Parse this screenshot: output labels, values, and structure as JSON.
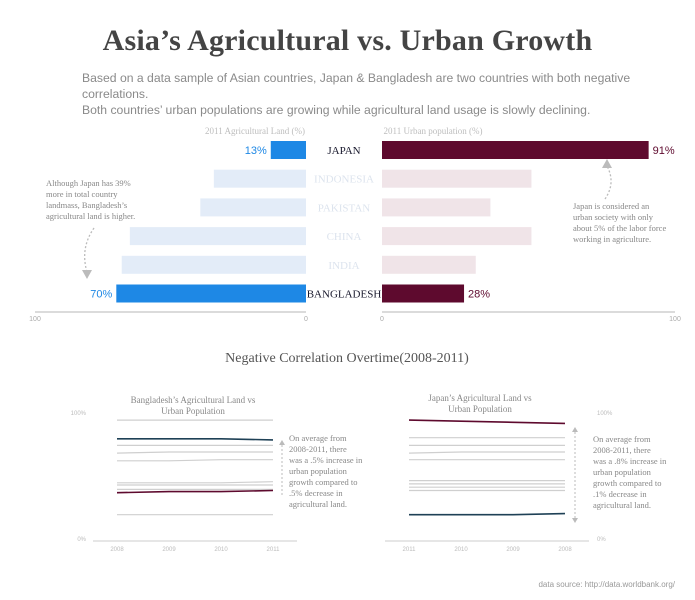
{
  "title": "Asia’s Agricultural vs. Urban Growth",
  "subtitle_line1": "Based on a data sample of Asian countries, Japan & Bangladesh are two countries with both negative correlations.",
  "subtitle_line2": "Both countries’ urban populations are growing while agricultural land usage is slowly declining.",
  "annotations": {
    "left_note": [
      "Although Japan has 39%",
      "more in total country",
      "landmass, Bangladesh’s",
      "agricultural land is higher."
    ],
    "right_note": [
      "Japan is considered an",
      "urban society with only",
      "about 5% of the labor force",
      "working in agriculture."
    ],
    "bangladesh_note": [
      "On average from",
      "2008-2011, there",
      "was a .5% increase in",
      "urban population",
      "growth compared to",
      ".5% decrease in",
      "agricultural land."
    ],
    "japan_note": [
      "On average from",
      "2008-2011, there",
      "was a .8% increase in",
      "urban population",
      "growth compared to",
      ".1% decrease in",
      "agricultural land."
    ]
  },
  "section2_title": "Negative Correlation Overtime(2008-2011)",
  "source": "data source: http://data.worldbank.org/",
  "colors": {
    "agri": "#1e88e5",
    "agri_faded": "#e3ecf8",
    "urban": "#5e0a2e",
    "urban_faded": "#f0e4e8",
    "highlight_line": "#1f4156",
    "line_gray": "#cfcfcf"
  },
  "chart_data": [
    {
      "type": "bar",
      "categories": [
        "JAPAN",
        "INDONESIA",
        "PAKISTAN",
        "CHINA",
        "INDIA",
        "BANGLADESH"
      ],
      "highlighted": [
        "JAPAN",
        "BANGLADESH"
      ],
      "series": [
        {
          "name": "2011 Agricultural Land (%)",
          "values": [
            13,
            34,
            39,
            65,
            68,
            70
          ],
          "labels": [
            "13%",
            "",
            "",
            "",
            "",
            "70%"
          ],
          "direction": "left"
        },
        {
          "name": "2011 Urban population (%)",
          "values": [
            91,
            51,
            37,
            51,
            32,
            28
          ],
          "labels": [
            "91%",
            "",
            "",
            "",
            "",
            "28%"
          ],
          "direction": "right"
        }
      ],
      "left_axis": {
        "min": 0,
        "max": 100,
        "tick_labels": [
          "100",
          "0"
        ]
      },
      "right_axis": {
        "min": 0,
        "max": 100,
        "tick_labels": [
          "0",
          "100"
        ]
      }
    },
    {
      "type": "line",
      "title_lines": [
        "Bangladesh’s Agricultural Land vs",
        "Urban Population"
      ],
      "x": [
        "2008",
        "2009",
        "2010",
        "2011"
      ],
      "ylim": [
        0,
        100
      ],
      "y_tick_labels": [
        "100%",
        "0%"
      ],
      "series": [
        {
          "values": [
            99,
            99,
            99,
            99
          ],
          "style": "gray"
        },
        {
          "values": [
            82,
            82,
            82,
            81
          ],
          "style": "highlight"
        },
        {
          "values": [
            76,
            76,
            76,
            76
          ],
          "style": "gray"
        },
        {
          "values": [
            69,
            70,
            70,
            70
          ],
          "style": "gray"
        },
        {
          "values": [
            62,
            62,
            63,
            63
          ],
          "style": "gray"
        },
        {
          "values": [
            42,
            42,
            42,
            43
          ],
          "style": "gray"
        },
        {
          "values": [
            40,
            40,
            40,
            40
          ],
          "style": "gray"
        },
        {
          "values": [
            36,
            36,
            36,
            36
          ],
          "style": "gray"
        },
        {
          "values": [
            33,
            34,
            34,
            35
          ],
          "style": "urban"
        },
        {
          "values": [
            13,
            13,
            13,
            13
          ],
          "style": "gray"
        }
      ]
    },
    {
      "type": "line",
      "title_lines": [
        "Japan’s Agricultural Land vs",
        "Urban Population"
      ],
      "x": [
        "2011",
        "2010",
        "2009",
        "2008"
      ],
      "ylim": [
        0,
        100
      ],
      "y_tick_labels": [
        "100%",
        "0%"
      ],
      "series": [
        {
          "values": [
            99,
            98,
            97,
            96
          ],
          "style": "urban"
        },
        {
          "values": [
            83,
            83,
            83,
            83
          ],
          "style": "gray"
        },
        {
          "values": [
            76,
            76,
            76,
            76
          ],
          "style": "gray"
        },
        {
          "values": [
            69,
            70,
            70,
            70
          ],
          "style": "gray"
        },
        {
          "values": [
            63,
            63,
            63,
            63
          ],
          "style": "gray"
        },
        {
          "values": [
            44,
            44,
            44,
            44
          ],
          "style": "gray"
        },
        {
          "values": [
            41,
            41,
            41,
            41
          ],
          "style": "gray"
        },
        {
          "values": [
            38,
            38,
            38,
            38
          ],
          "style": "gray"
        },
        {
          "values": [
            35,
            35,
            35,
            35
          ],
          "style": "gray"
        },
        {
          "values": [
            13,
            13,
            13,
            14
          ],
          "style": "highlight"
        }
      ]
    }
  ]
}
